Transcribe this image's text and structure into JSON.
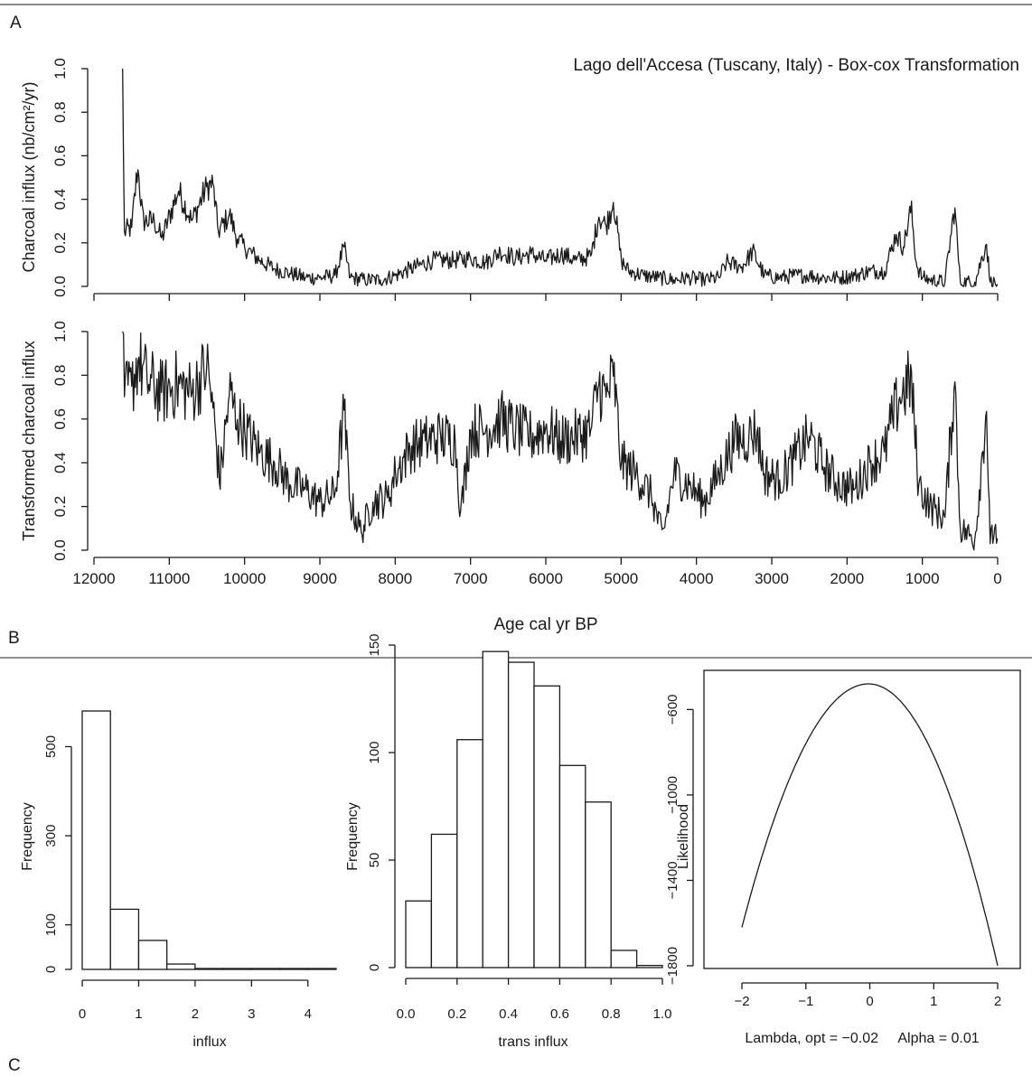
{
  "figure": {
    "panel_labels": {
      "a": "A",
      "b": "B",
      "c": "C"
    }
  },
  "chart_data": [
    {
      "id": "top-series",
      "type": "line",
      "title": "Lago dell'Accesa (Tuscany, Italy) - Box-cox Transformation",
      "xlabel": "",
      "ylabel": "Charcoal influx (nb/cm²/yr)",
      "xlim": [
        12000,
        0
      ],
      "ylim": [
        0,
        1.0
      ],
      "xticks": [
        12000,
        11000,
        10000,
        9000,
        8000,
        7000,
        6000,
        5000,
        4000,
        3000,
        2000,
        1000,
        0
      ],
      "yticks": [
        "0.0",
        "0.2",
        "0.4",
        "0.6",
        "0.8",
        "1.0"
      ],
      "grid": false,
      "anchor_points": [
        [
          11620,
          1.01
        ],
        [
          11600,
          0.25
        ],
        [
          11500,
          0.27
        ],
        [
          11420,
          0.55
        ],
        [
          11350,
          0.3
        ],
        [
          11200,
          0.3
        ],
        [
          11100,
          0.22
        ],
        [
          10880,
          0.44
        ],
        [
          10700,
          0.3
        ],
        [
          10500,
          0.46
        ],
        [
          10420,
          0.47
        ],
        [
          10350,
          0.25
        ],
        [
          10200,
          0.33
        ],
        [
          10100,
          0.22
        ],
        [
          10000,
          0.18
        ],
        [
          9800,
          0.12
        ],
        [
          9600,
          0.08
        ],
        [
          9400,
          0.06
        ],
        [
          9200,
          0.04
        ],
        [
          9000,
          0.04
        ],
        [
          8800,
          0.05
        ],
        [
          8680,
          0.18
        ],
        [
          8600,
          0.04
        ],
        [
          8400,
          0.03
        ],
        [
          8200,
          0.03
        ],
        [
          8000,
          0.05
        ],
        [
          7800,
          0.08
        ],
        [
          7500,
          0.12
        ],
        [
          7200,
          0.12
        ],
        [
          7000,
          0.13
        ],
        [
          6800,
          0.11
        ],
        [
          6600,
          0.16
        ],
        [
          6400,
          0.13
        ],
        [
          6200,
          0.15
        ],
        [
          6000,
          0.12
        ],
        [
          5800,
          0.15
        ],
        [
          5600,
          0.12
        ],
        [
          5400,
          0.14
        ],
        [
          5300,
          0.32
        ],
        [
          5200,
          0.28
        ],
        [
          5100,
          0.39
        ],
        [
          5000,
          0.12
        ],
        [
          4900,
          0.07
        ],
        [
          4700,
          0.05
        ],
        [
          4500,
          0.04
        ],
        [
          4300,
          0.03
        ],
        [
          4100,
          0.04
        ],
        [
          3900,
          0.03
        ],
        [
          3700,
          0.04
        ],
        [
          3600,
          0.11
        ],
        [
          3400,
          0.09
        ],
        [
          3250,
          0.16
        ],
        [
          3100,
          0.05
        ],
        [
          2900,
          0.04
        ],
        [
          2700,
          0.05
        ],
        [
          2500,
          0.05
        ],
        [
          2300,
          0.04
        ],
        [
          2100,
          0.04
        ],
        [
          1900,
          0.05
        ],
        [
          1700,
          0.07
        ],
        [
          1500,
          0.07
        ],
        [
          1350,
          0.24
        ],
        [
          1250,
          0.18
        ],
        [
          1150,
          0.36
        ],
        [
          1080,
          0.1
        ],
        [
          1000,
          0.04
        ],
        [
          900,
          0.03
        ],
        [
          700,
          0.02
        ],
        [
          570,
          0.37
        ],
        [
          500,
          0.02
        ],
        [
          300,
          0.02
        ],
        [
          150,
          0.2
        ],
        [
          100,
          0.02
        ],
        [
          0,
          0.01
        ]
      ]
    },
    {
      "id": "bottom-series",
      "type": "line",
      "title": "",
      "xlabel": "Age cal yr BP",
      "ylabel": "Transformed charcoal influx",
      "xlim": [
        12000,
        0
      ],
      "ylim": [
        0,
        1.0
      ],
      "xticks": [
        12000,
        11000,
        10000,
        9000,
        8000,
        7000,
        6000,
        5000,
        4000,
        3000,
        2000,
        1000,
        0
      ],
      "yticks": [
        "0.0",
        "0.2",
        "0.4",
        "0.6",
        "0.8",
        "1.0"
      ],
      "grid": false,
      "anchor_points": [
        [
          11620,
          1.0
        ],
        [
          11600,
          0.7
        ],
        [
          11500,
          0.75
        ],
        [
          11420,
          0.87
        ],
        [
          11300,
          0.78
        ],
        [
          11100,
          0.72
        ],
        [
          10900,
          0.76
        ],
        [
          10700,
          0.72
        ],
        [
          10500,
          0.84
        ],
        [
          10420,
          0.65
        ],
        [
          10330,
          0.32
        ],
        [
          10200,
          0.72
        ],
        [
          10100,
          0.6
        ],
        [
          10000,
          0.55
        ],
        [
          9800,
          0.45
        ],
        [
          9600,
          0.4
        ],
        [
          9400,
          0.3
        ],
        [
          9200,
          0.28
        ],
        [
          9000,
          0.22
        ],
        [
          8800,
          0.26
        ],
        [
          8680,
          0.64
        ],
        [
          8600,
          0.22
        ],
        [
          8450,
          0.08
        ],
        [
          8300,
          0.22
        ],
        [
          8100,
          0.24
        ],
        [
          8000,
          0.35
        ],
        [
          7800,
          0.47
        ],
        [
          7600,
          0.5
        ],
        [
          7400,
          0.52
        ],
        [
          7200,
          0.5
        ],
        [
          7130,
          0.17
        ],
        [
          7000,
          0.55
        ],
        [
          6800,
          0.55
        ],
        [
          6600,
          0.6
        ],
        [
          6400,
          0.55
        ],
        [
          6200,
          0.52
        ],
        [
          6000,
          0.56
        ],
        [
          5800,
          0.5
        ],
        [
          5600,
          0.52
        ],
        [
          5400,
          0.55
        ],
        [
          5300,
          0.76
        ],
        [
          5200,
          0.7
        ],
        [
          5100,
          0.8
        ],
        [
          5000,
          0.4
        ],
        [
          4800,
          0.35
        ],
        [
          4600,
          0.25
        ],
        [
          4450,
          0.06
        ],
        [
          4300,
          0.35
        ],
        [
          4100,
          0.3
        ],
        [
          3900,
          0.22
        ],
        [
          3700,
          0.35
        ],
        [
          3500,
          0.5
        ],
        [
          3300,
          0.52
        ],
        [
          3200,
          0.55
        ],
        [
          3100,
          0.35
        ],
        [
          2900,
          0.32
        ],
        [
          2700,
          0.42
        ],
        [
          2500,
          0.52
        ],
        [
          2300,
          0.38
        ],
        [
          2100,
          0.3
        ],
        [
          1900,
          0.28
        ],
        [
          1700,
          0.4
        ],
        [
          1500,
          0.45
        ],
        [
          1400,
          0.6
        ],
        [
          1300,
          0.7
        ],
        [
          1150,
          0.78
        ],
        [
          1050,
          0.3
        ],
        [
          900,
          0.2
        ],
        [
          700,
          0.15
        ],
        [
          570,
          0.79
        ],
        [
          500,
          0.1
        ],
        [
          300,
          0.05
        ],
        [
          150,
          0.66
        ],
        [
          100,
          0.03
        ],
        [
          40,
          0.1
        ],
        [
          0,
          0.05
        ]
      ]
    },
    {
      "id": "hist-influx",
      "type": "bar",
      "title": "",
      "xlabel": "influx",
      "ylabel": "Frequency",
      "bin_edges": [
        0,
        0.5,
        1.0,
        1.5,
        2.0,
        2.5,
        3.0,
        3.5,
        4.0,
        4.5
      ],
      "values": [
        580,
        135,
        65,
        12,
        2,
        1,
        1,
        1,
        2
      ],
      "xlim": [
        0,
        4.5
      ],
      "ylim": [
        0,
        600
      ],
      "xticks": [
        "0",
        "1",
        "2",
        "3",
        "4"
      ],
      "yticks": [
        "0",
        "100",
        "300",
        "500"
      ]
    },
    {
      "id": "hist-trans",
      "type": "bar",
      "title": "",
      "xlabel": "trans influx",
      "ylabel": "Frequency",
      "bin_edges": [
        0.0,
        0.1,
        0.2,
        0.3,
        0.4,
        0.5,
        0.6,
        0.7,
        0.8,
        0.9,
        1.0
      ],
      "values": [
        31,
        62,
        106,
        147,
        142,
        131,
        94,
        77,
        8,
        1
      ],
      "xlim": [
        0.0,
        1.0
      ],
      "ylim": [
        0,
        150
      ],
      "xticks": [
        "0.0",
        "0.2",
        "0.4",
        "0.6",
        "0.8",
        "1.0"
      ],
      "yticks": [
        "0",
        "50",
        "100",
        "150"
      ]
    },
    {
      "id": "likelihood",
      "type": "line",
      "title": "",
      "xlabel": "Lambda, opt = −0.02     Alpha = 0.01",
      "ylabel": "Likelihood",
      "curve": {
        "lambda_range": [
          -2,
          2
        ],
        "peak_lambda": -0.02,
        "peak_value": -480,
        "value_at_minus2": -1620,
        "value_at_plus2": -1800
      },
      "xlim": [
        -2,
        2
      ],
      "ylim": [
        -1800,
        -480
      ],
      "xticks": [
        "−2",
        "−1",
        "0",
        "1",
        "2"
      ],
      "yticks": [
        "−1800",
        "−1400",
        "−1000",
        "−600"
      ]
    }
  ]
}
